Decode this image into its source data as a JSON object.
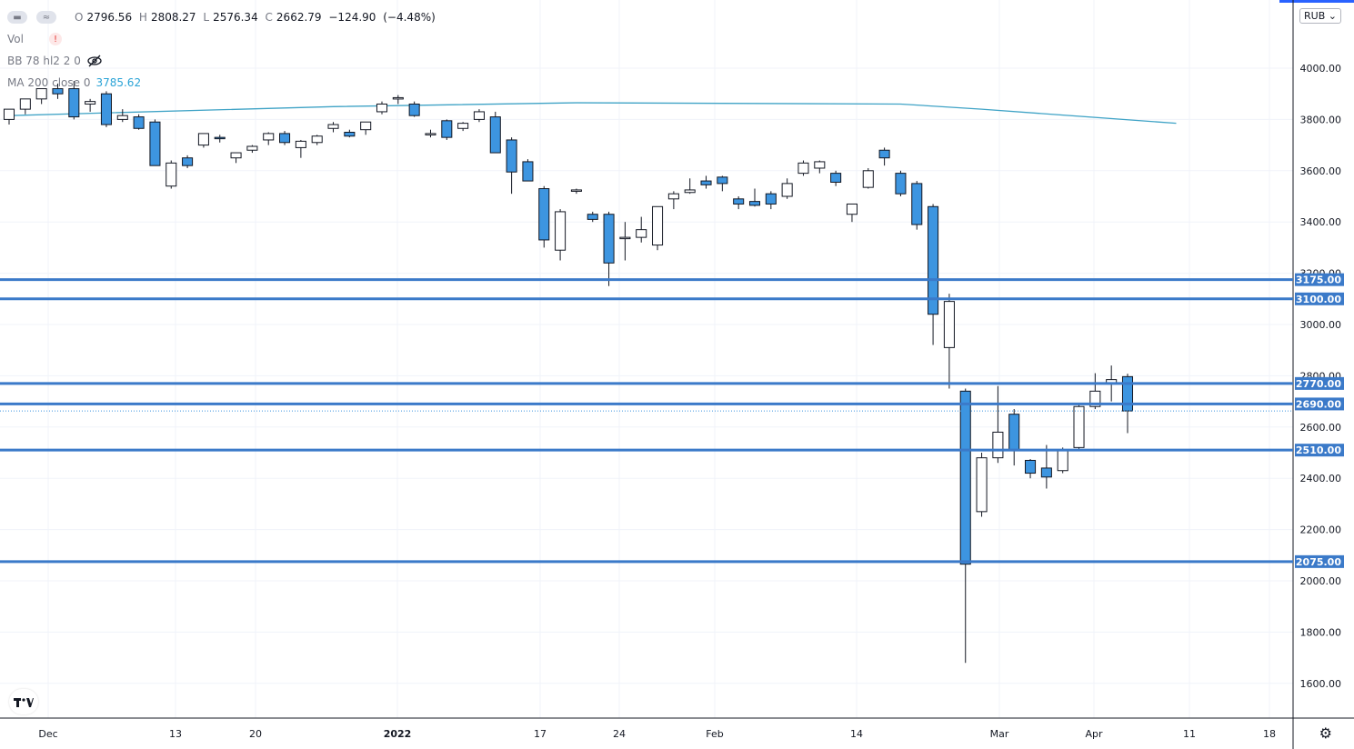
{
  "symbol_legend": {
    "open_label": "O",
    "open": "2796.56",
    "high_label": "H",
    "high": "2808.27",
    "low_label": "L",
    "low": "2576.34",
    "close_label": "C",
    "close": "2662.79",
    "change": "−124.90",
    "change_pct": "(−4.48%)"
  },
  "indicators": [
    {
      "name": "Vol",
      "badge": "!"
    },
    {
      "name": "BB 78 hl2 2 0"
    },
    {
      "name": "MA 200 close 0",
      "value": "3785.62"
    }
  ],
  "currency": "RUB",
  "icons": {
    "legend_toggle": "wave-icon",
    "hidden": "eye-off-icon",
    "logo": "tradingview-logo",
    "settings": "gear-icon"
  },
  "colors": {
    "up_candle": "#ffffff",
    "down_candle": "#3d95e0",
    "candle_border": "#131722",
    "level_line": "#3b7ac9",
    "ma_line": "#3fa3c6",
    "grid": "#f0f3fa"
  },
  "chart_data": {
    "type": "candlestick",
    "y_scale_ticks": [
      "4000.00",
      "3800.00",
      "3600.00",
      "3400.00",
      "3200.00",
      "3000.00",
      "2800.00",
      "2600.00",
      "2400.00",
      "2200.00",
      "2000.00",
      "1800.00",
      "1600.00"
    ],
    "ylim": [
      1540,
      4280
    ],
    "x_ticks": [
      "Dec",
      "13",
      "20",
      "2022",
      "17",
      "24",
      "Feb",
      "14",
      "Mar",
      "Apr",
      "11",
      "18"
    ],
    "levels": [
      "3175.00",
      "3100.00",
      "2770.00",
      "2690.00",
      "2510.00",
      "2075.00"
    ],
    "last_price": 2662.79,
    "ma200": [
      [
        0,
        3815
      ],
      [
        20,
        3850
      ],
      [
        35,
        3865
      ],
      [
        55,
        3860
      ],
      [
        60,
        3840
      ],
      [
        72,
        3785
      ]
    ],
    "candles": [
      {
        "o": 3800,
        "h": 3840,
        "l": 3780,
        "c": 3840
      },
      {
        "o": 3840,
        "h": 3880,
        "l": 3820,
        "c": 3880
      },
      {
        "o": 3880,
        "h": 3920,
        "l": 3860,
        "c": 3920
      },
      {
        "o": 3920,
        "h": 3940,
        "l": 3880,
        "c": 3900
      },
      {
        "o": 3920,
        "h": 3950,
        "l": 3800,
        "c": 3810
      },
      {
        "o": 3860,
        "h": 3880,
        "l": 3830,
        "c": 3870
      },
      {
        "o": 3900,
        "h": 3910,
        "l": 3770,
        "c": 3780
      },
      {
        "o": 3800,
        "h": 3840,
        "l": 3790,
        "c": 3815
      },
      {
        "o": 3810,
        "h": 3820,
        "l": 3760,
        "c": 3765
      },
      {
        "o": 3790,
        "h": 3800,
        "l": 3620,
        "c": 3620
      },
      {
        "o": 3540,
        "h": 3640,
        "l": 3530,
        "c": 3630
      },
      {
        "o": 3650,
        "h": 3660,
        "l": 3610,
        "c": 3620
      },
      {
        "o": 3700,
        "h": 3745,
        "l": 3690,
        "c": 3745
      },
      {
        "o": 3730,
        "h": 3740,
        "l": 3710,
        "c": 3725
      },
      {
        "o": 3650,
        "h": 3670,
        "l": 3630,
        "c": 3670
      },
      {
        "o": 3680,
        "h": 3700,
        "l": 3670,
        "c": 3695
      },
      {
        "o": 3720,
        "h": 3750,
        "l": 3700,
        "c": 3745
      },
      {
        "o": 3745,
        "h": 3755,
        "l": 3700,
        "c": 3710
      },
      {
        "o": 3690,
        "h": 3720,
        "l": 3650,
        "c": 3715
      },
      {
        "o": 3710,
        "h": 3740,
        "l": 3700,
        "c": 3735
      },
      {
        "o": 3765,
        "h": 3790,
        "l": 3750,
        "c": 3780
      },
      {
        "o": 3750,
        "h": 3760,
        "l": 3730,
        "c": 3735
      },
      {
        "o": 3760,
        "h": 3790,
        "l": 3740,
        "c": 3790
      },
      {
        "o": 3830,
        "h": 3870,
        "l": 3820,
        "c": 3860
      },
      {
        "o": 3880,
        "h": 3895,
        "l": 3860,
        "c": 3885
      },
      {
        "o": 3860,
        "h": 3870,
        "l": 3810,
        "c": 3815
      },
      {
        "o": 3745,
        "h": 3760,
        "l": 3730,
        "c": 3745
      },
      {
        "o": 3795,
        "h": 3800,
        "l": 3720,
        "c": 3730
      },
      {
        "o": 3765,
        "h": 3790,
        "l": 3755,
        "c": 3785
      },
      {
        "o": 3800,
        "h": 3840,
        "l": 3790,
        "c": 3830
      },
      {
        "o": 3810,
        "h": 3830,
        "l": 3670,
        "c": 3670
      },
      {
        "o": 3720,
        "h": 3730,
        "l": 3510,
        "c": 3595
      },
      {
        "o": 3635,
        "h": 3645,
        "l": 3560,
        "c": 3560
      },
      {
        "o": 3530,
        "h": 3540,
        "l": 3300,
        "c": 3330
      },
      {
        "o": 3290,
        "h": 3450,
        "l": 3250,
        "c": 3440
      },
      {
        "o": 3520,
        "h": 3530,
        "l": 3510,
        "c": 3525
      },
      {
        "o": 3430,
        "h": 3440,
        "l": 3400,
        "c": 3410
      },
      {
        "o": 3430,
        "h": 3440,
        "l": 3150,
        "c": 3240
      },
      {
        "o": 3335,
        "h": 3400,
        "l": 3250,
        "c": 3340
      },
      {
        "o": 3340,
        "h": 3420,
        "l": 3320,
        "c": 3370
      },
      {
        "o": 3310,
        "h": 3460,
        "l": 3290,
        "c": 3460
      },
      {
        "o": 3490,
        "h": 3520,
        "l": 3450,
        "c": 3510
      },
      {
        "o": 3515,
        "h": 3570,
        "l": 3510,
        "c": 3525
      },
      {
        "o": 3560,
        "h": 3580,
        "l": 3530,
        "c": 3545
      },
      {
        "o": 3575,
        "h": 3580,
        "l": 3520,
        "c": 3550
      },
      {
        "o": 3490,
        "h": 3500,
        "l": 3450,
        "c": 3470
      },
      {
        "o": 3480,
        "h": 3530,
        "l": 3460,
        "c": 3465
      },
      {
        "o": 3510,
        "h": 3520,
        "l": 3450,
        "c": 3470
      },
      {
        "o": 3500,
        "h": 3570,
        "l": 3490,
        "c": 3550
      },
      {
        "o": 3590,
        "h": 3640,
        "l": 3580,
        "c": 3630
      },
      {
        "o": 3610,
        "h": 3640,
        "l": 3590,
        "c": 3635
      },
      {
        "o": 3590,
        "h": 3600,
        "l": 3540,
        "c": 3555
      },
      {
        "o": 3430,
        "h": 3450,
        "l": 3400,
        "c": 3470
      },
      {
        "o": 3535,
        "h": 3610,
        "l": 3530,
        "c": 3600
      },
      {
        "o": 3680,
        "h": 3690,
        "l": 3620,
        "c": 3650
      },
      {
        "o": 3590,
        "h": 3600,
        "l": 3500,
        "c": 3510
      },
      {
        "o": 3550,
        "h": 3560,
        "l": 3370,
        "c": 3390
      },
      {
        "o": 3460,
        "h": 3470,
        "l": 2920,
        "c": 3040
      },
      {
        "o": 2910,
        "h": 3120,
        "l": 2750,
        "c": 3090
      },
      {
        "o": 2740,
        "h": 2750,
        "l": 1680,
        "c": 2065
      },
      {
        "o": 2270,
        "h": 2500,
        "l": 2250,
        "c": 2480
      },
      {
        "o": 2480,
        "h": 2760,
        "l": 2460,
        "c": 2580
      },
      {
        "o": 2650,
        "h": 2670,
        "l": 2450,
        "c": 2510
      },
      {
        "o": 2470,
        "h": 2475,
        "l": 2400,
        "c": 2420
      },
      {
        "o": 2440,
        "h": 2530,
        "l": 2360,
        "c": 2405
      },
      {
        "o": 2430,
        "h": 2520,
        "l": 2420,
        "c": 2510
      },
      {
        "o": 2520,
        "h": 2690,
        "l": 2510,
        "c": 2680
      },
      {
        "o": 2680,
        "h": 2810,
        "l": 2670,
        "c": 2740
      },
      {
        "o": 2770,
        "h": 2840,
        "l": 2700,
        "c": 2785
      },
      {
        "o": 2796.56,
        "h": 2808.27,
        "l": 2576.34,
        "c": 2662.79
      }
    ]
  }
}
